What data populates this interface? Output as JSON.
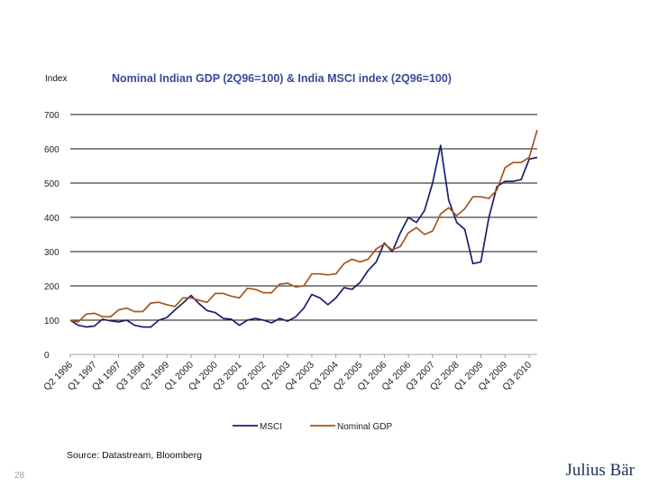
{
  "slide": {
    "source": "Source: Datastream, Bloomberg",
    "page_number": "28",
    "brand": "Julius Bär"
  },
  "chart_data": {
    "type": "line",
    "title": "Nominal Indian GDP (2Q96=100) & India MSCI index (2Q96=100)",
    "ylabel": "Index",
    "xlabel": "",
    "ylim": [
      0,
      700
    ],
    "yticks": [
      0,
      100,
      200,
      300,
      400,
      500,
      600,
      700
    ],
    "grid": true,
    "legend": "bottom-center",
    "x_start": "Q2 1996",
    "x_end": "Q1 2011",
    "x_tick_labels": [
      "Q2 1996",
      "Q1 1997",
      "Q4 1997",
      "Q3 1998",
      "Q2 1999",
      "Q1 2000",
      "Q4 2000",
      "Q3 2001",
      "Q2 2002",
      "Q1 2003",
      "Q4 2003",
      "Q3 2004",
      "Q2 2005",
      "Q1 2006",
      "Q4 2006",
      "Q3 2007",
      "Q2 2008",
      "Q1 2009",
      "Q4 2009",
      "Q3 2010"
    ],
    "series": [
      {
        "name": "MSCI",
        "color": "#1b1f6b",
        "values": [
          100,
          85,
          80,
          83,
          103,
          98,
          95,
          100,
          85,
          80,
          80,
          100,
          108,
          130,
          150,
          172,
          148,
          128,
          122,
          105,
          103,
          85,
          100,
          105,
          100,
          92,
          105,
          97,
          110,
          135,
          175,
          165,
          145,
          165,
          195,
          190,
          210,
          245,
          270,
          325,
          300,
          355,
          400,
          385,
          420,
          500,
          610,
          450,
          385,
          365,
          265,
          270,
          400,
          490,
          505,
          505,
          510,
          570,
          575
        ]
      },
      {
        "name": "Nominal GDP",
        "color": "#a5561d",
        "values": [
          100,
          95,
          118,
          120,
          110,
          110,
          130,
          135,
          125,
          125,
          150,
          152,
          145,
          140,
          165,
          165,
          158,
          152,
          178,
          178,
          170,
          165,
          193,
          190,
          180,
          180,
          205,
          208,
          197,
          200,
          235,
          235,
          232,
          235,
          265,
          278,
          270,
          278,
          308,
          322,
          305,
          315,
          355,
          370,
          350,
          360,
          410,
          428,
          405,
          425,
          460,
          460,
          455,
          480,
          545,
          560,
          560,
          575,
          655
        ]
      }
    ]
  }
}
